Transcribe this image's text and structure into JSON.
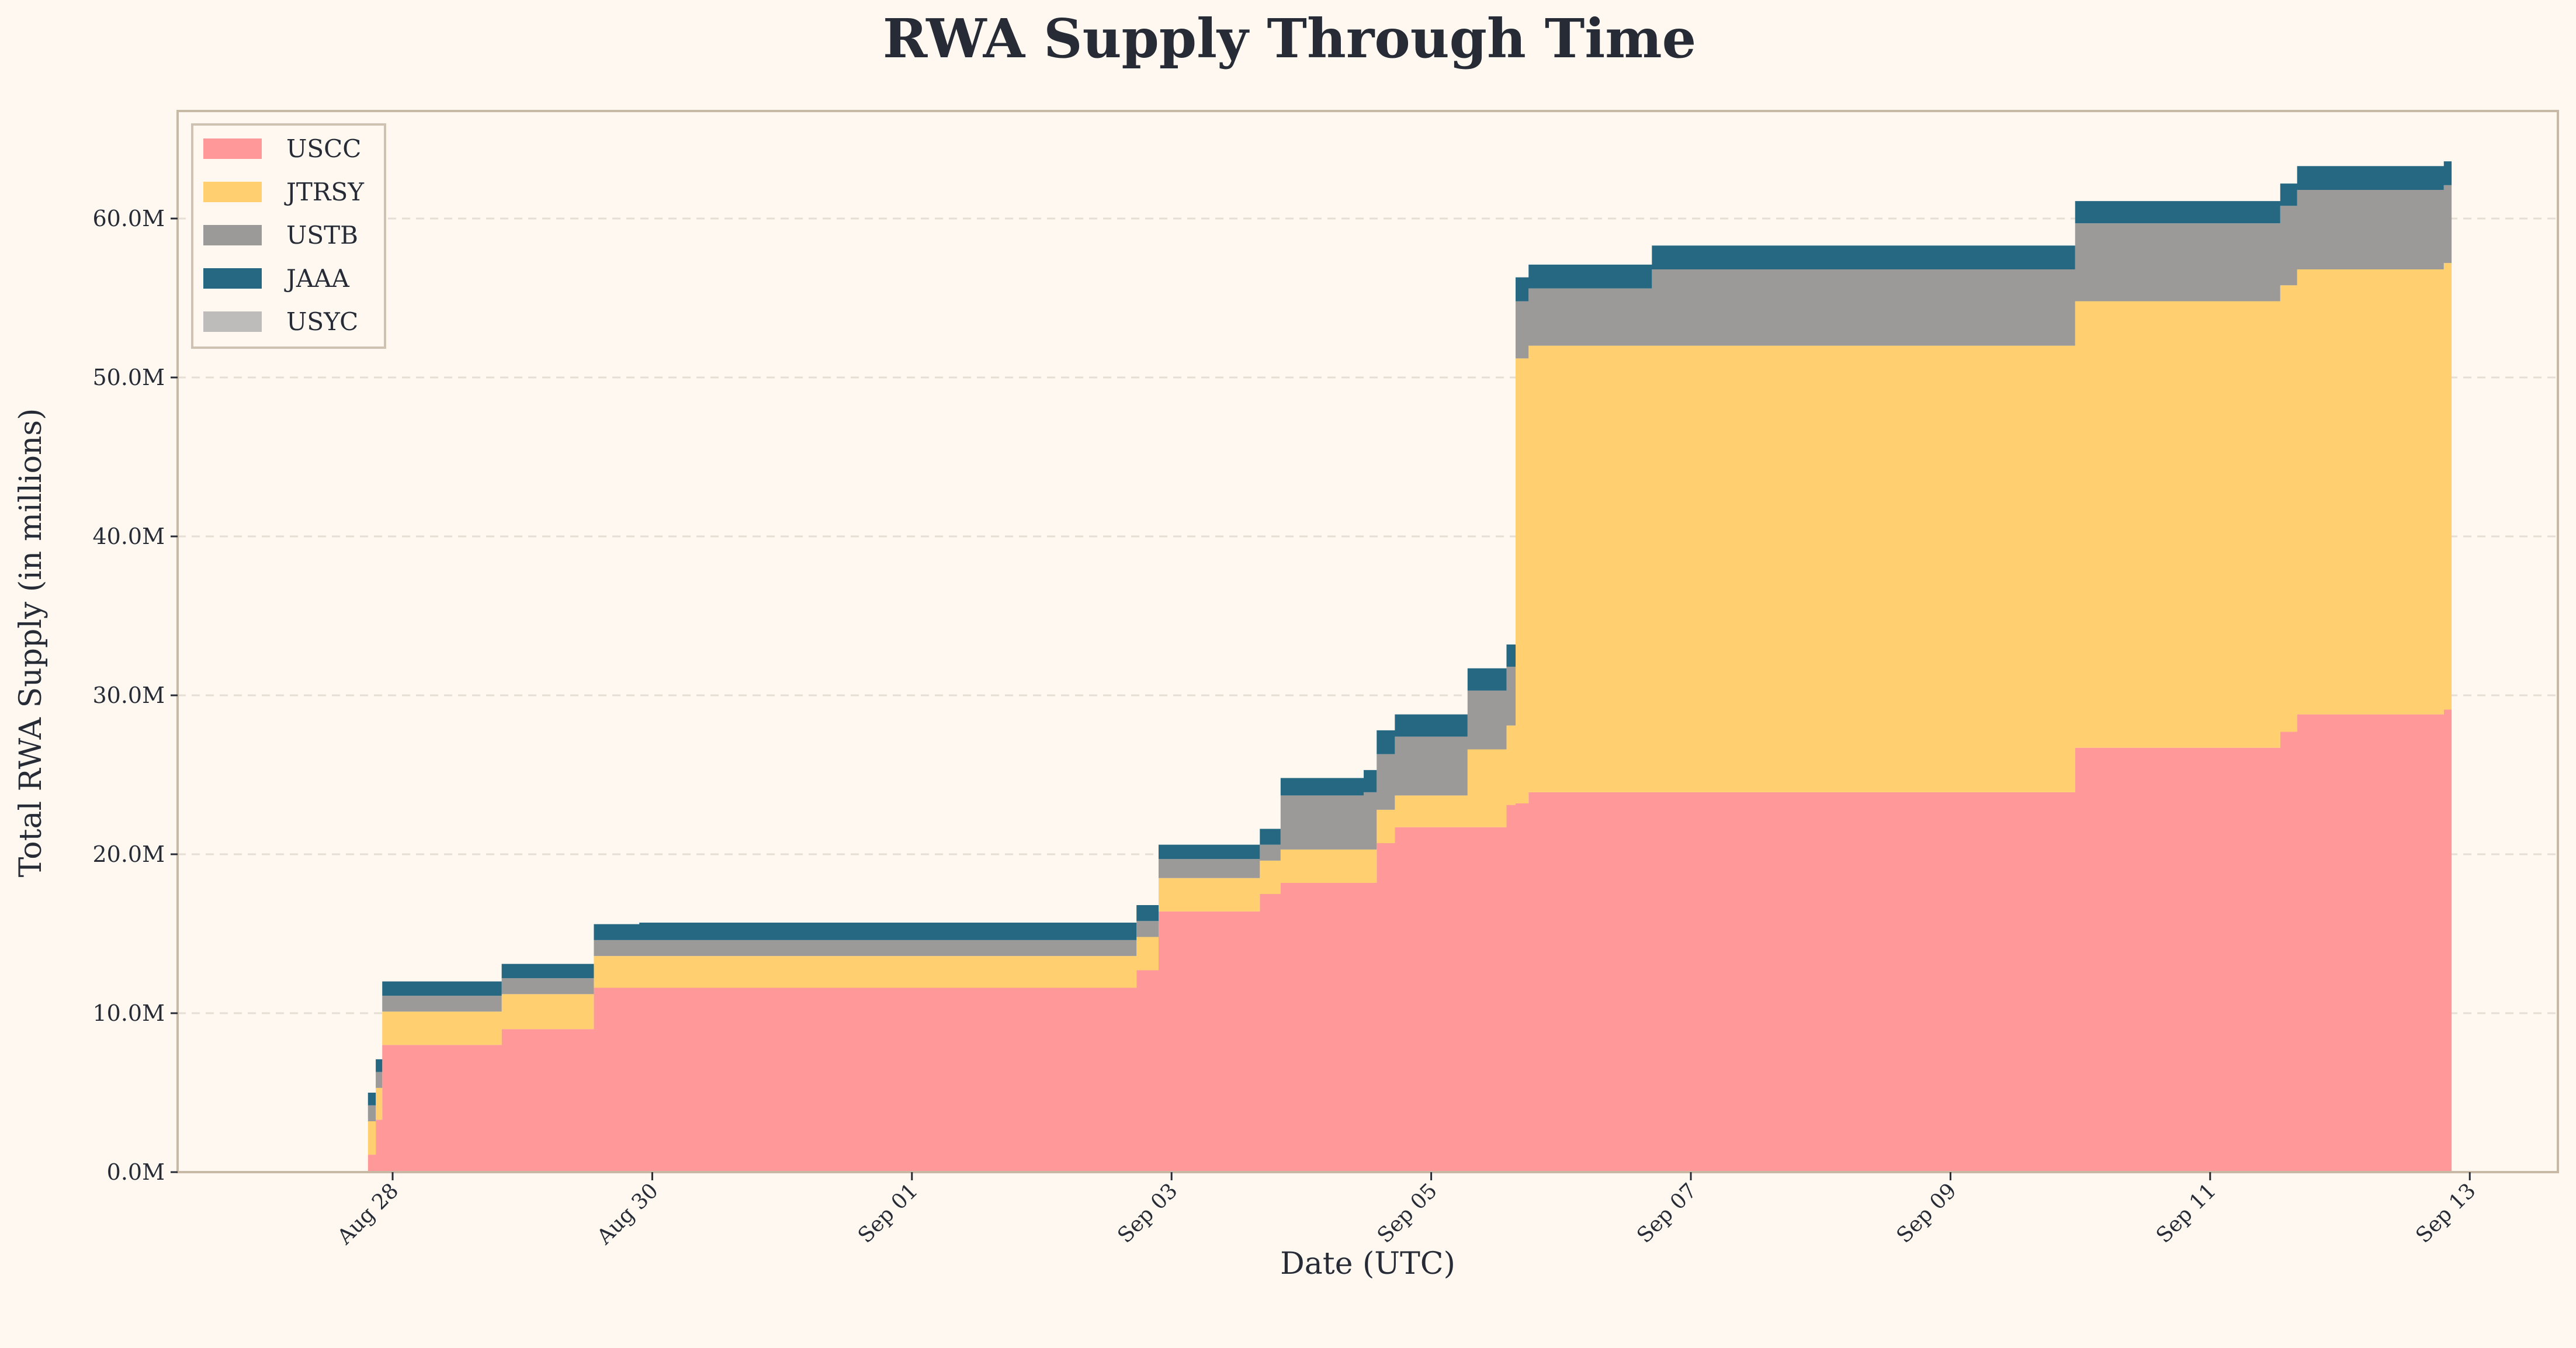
{
  "chart_data": {
    "type": "area",
    "title": "RWA Supply Through Time",
    "xlabel": "Date (UTC)",
    "ylabel": "Total RWA Supply (in millions)",
    "ylim": [
      0,
      67
    ],
    "yticks": [
      0,
      10,
      20,
      30,
      40,
      50,
      60
    ],
    "ytick_labels": [
      "0.0M",
      "10.0M",
      "20.0M",
      "30.0M",
      "40.0M",
      "50.0M",
      "60.0M"
    ],
    "xlim_days_from_aug28": [
      -1.66,
      17.05
    ],
    "xticks_days_from_aug28": [
      0,
      2,
      4,
      6,
      8,
      10,
      12,
      14,
      16
    ],
    "xtick_labels": [
      "Aug 28",
      "Aug 30",
      "Sep 01",
      "Sep 03",
      "Sep 05",
      "Sep 07",
      "Sep 09",
      "Sep 11",
      "Sep 13"
    ],
    "grid": "horizontal dashed",
    "legend_position": "top-left",
    "x_days_from_aug28": [
      -0.19,
      -0.13,
      -0.08,
      0.84,
      1.55,
      1.9,
      5.73,
      5.9,
      6.68,
      6.84,
      7.48,
      7.58,
      7.72,
      8.28,
      8.58,
      8.65,
      8.75,
      9.7,
      12.96,
      14.54,
      14.67,
      15.8
    ],
    "x_end_days_from_aug28": 15.86,
    "series": [
      {
        "name": "USCC",
        "color": "#ff9999",
        "values": [
          1.1,
          3.3,
          8.0,
          9.0,
          11.6,
          11.6,
          12.7,
          16.4,
          17.5,
          18.2,
          18.2,
          20.7,
          21.7,
          21.7,
          23.1,
          23.2,
          23.9,
          23.9,
          26.7,
          27.7,
          28.8,
          29.1
        ]
      },
      {
        "name": "JTRSY",
        "color": "#ffcf70",
        "values": [
          2.1,
          2.0,
          2.1,
          2.2,
          2.0,
          2.0,
          2.1,
          2.1,
          2.1,
          2.1,
          2.1,
          2.1,
          2.0,
          4.9,
          5.0,
          28.0,
          28.1,
          28.1,
          28.1,
          28.1,
          28.0,
          28.1
        ]
      },
      {
        "name": "USTB",
        "color": "#9b9a98",
        "values": [
          1.0,
          1.0,
          1.0,
          1.0,
          1.0,
          1.0,
          1.0,
          1.2,
          1.0,
          3.4,
          3.6,
          3.5,
          3.7,
          3.7,
          3.7,
          3.6,
          3.6,
          4.8,
          4.9,
          5.0,
          5.0,
          4.9
        ]
      },
      {
        "name": "JAAA",
        "color": "#266882",
        "values": [
          0.8,
          0.8,
          0.9,
          0.9,
          1.0,
          1.1,
          1.0,
          0.9,
          1.0,
          1.1,
          1.4,
          1.5,
          1.4,
          1.4,
          1.4,
          1.5,
          1.5,
          1.5,
          1.4,
          1.4,
          1.5,
          1.5
        ]
      },
      {
        "name": "USYC",
        "color": "#bdbcbb",
        "values": [
          0,
          0,
          0,
          0,
          0,
          0,
          0,
          0,
          0,
          0,
          0,
          0,
          0,
          0,
          0,
          0,
          0,
          0,
          0,
          0,
          0,
          0
        ]
      }
    ]
  }
}
